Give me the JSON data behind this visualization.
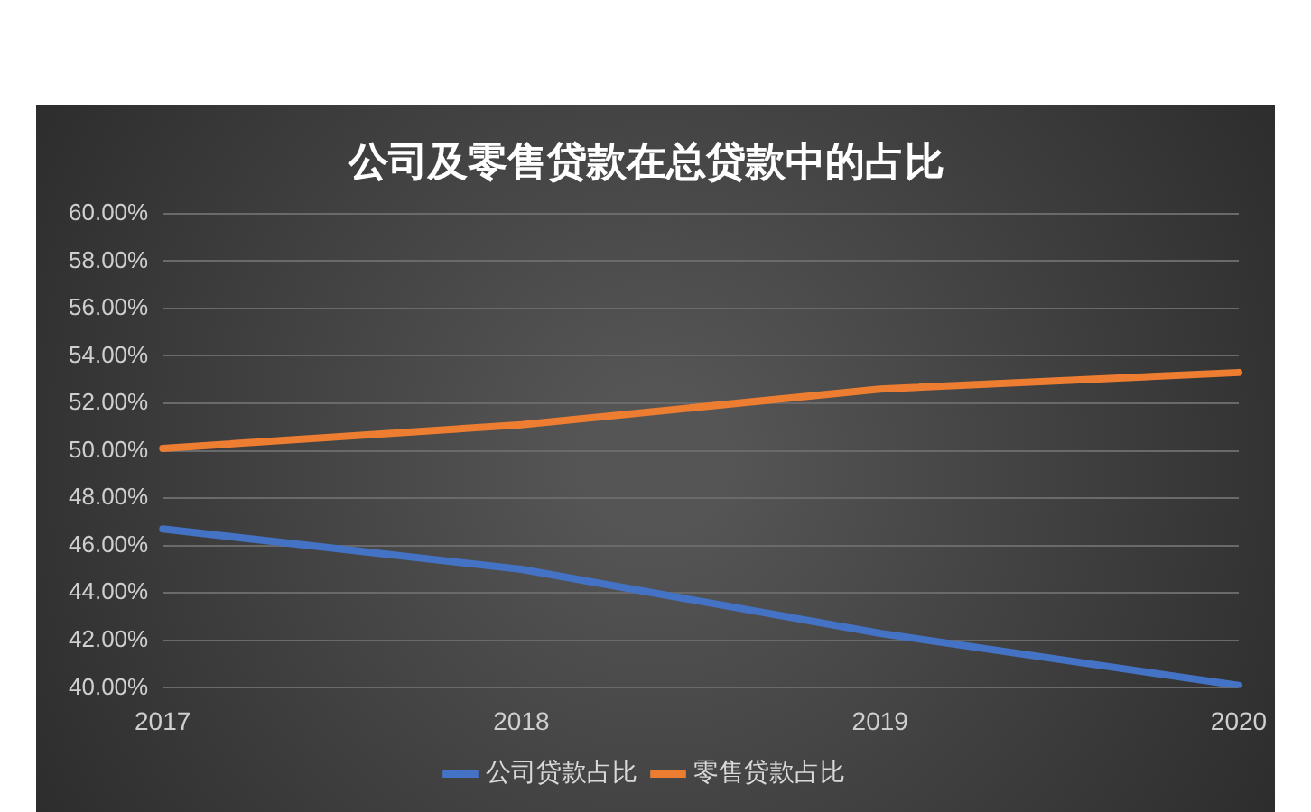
{
  "chart_data": {
    "type": "line",
    "title": "公司及零售贷款在总贷款中的占比",
    "categories": [
      "2017",
      "2018",
      "2019",
      "2020"
    ],
    "series": [
      {
        "name": "公司贷款占比",
        "color": "#4472c4",
        "values": [
          46.7,
          45.0,
          42.3,
          40.1
        ]
      },
      {
        "name": "零售贷款占比",
        "color": "#ed7d31",
        "values": [
          50.1,
          51.1,
          52.6,
          53.3
        ]
      }
    ],
    "ylim": [
      40,
      60
    ],
    "yticks": [
      {
        "value": 40,
        "label": "40.00%"
      },
      {
        "value": 42,
        "label": "42.00%"
      },
      {
        "value": 44,
        "label": "44.00%"
      },
      {
        "value": 46,
        "label": "46.00%"
      },
      {
        "value": 48,
        "label": "48.00%"
      },
      {
        "value": 50,
        "label": "50.00%"
      },
      {
        "value": 52,
        "label": "52.00%"
      },
      {
        "value": 54,
        "label": "54.00%"
      },
      {
        "value": 56,
        "label": "56.00%"
      },
      {
        "value": 58,
        "label": "58.00%"
      },
      {
        "value": 60,
        "label": "60.00%"
      }
    ],
    "grid": "y",
    "legend": "bottom",
    "marker": "none",
    "line_style": "solid"
  }
}
